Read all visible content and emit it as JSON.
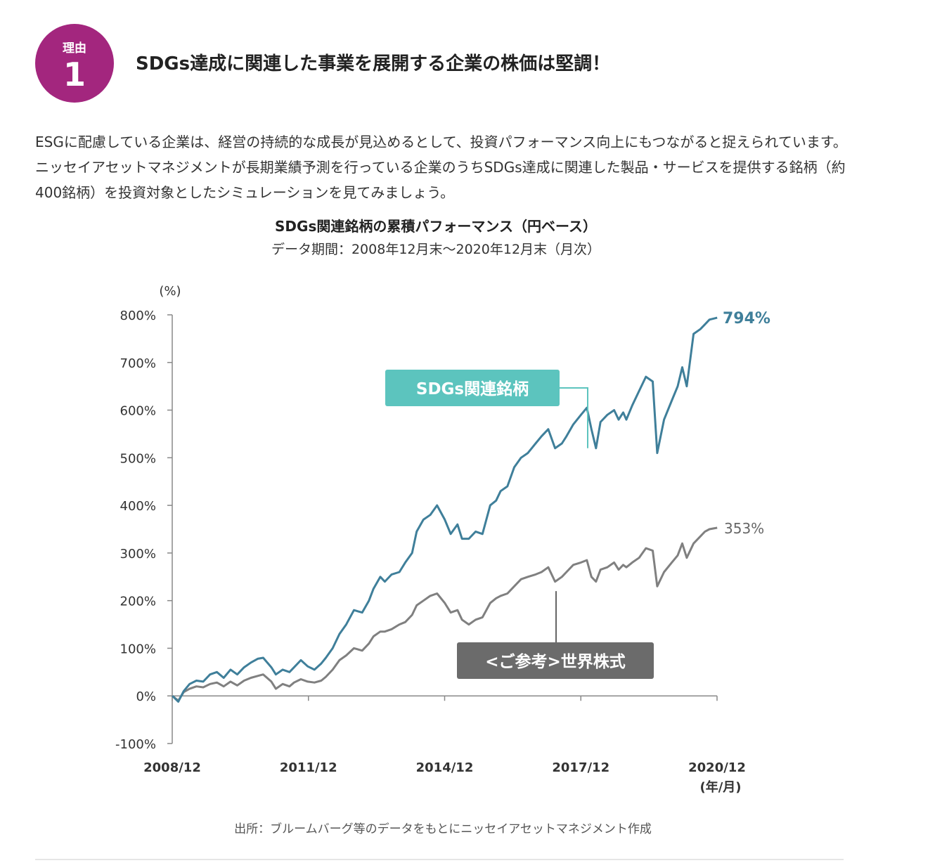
{
  "badge": {
    "label": "理由",
    "number": "1"
  },
  "heading": "SDGs達成に関連した事業を展開する企業の株価は堅調！",
  "paragraph": "ESGに配慮している企業は、経営の持続的な成長が見込めるとして、投資パフォーマンス向上にもつながると捉えられています。ニッセイアセットマネジメントが長期業績予測を行っている企業のうちSDGs達成に関連した製品・サービスを提供する銘柄（約400銘柄）を投資対象としたシミュレーションを見てみましょう。",
  "source": "出所：ブルームバーグ等のデータをもとにニッセイアセットマネジメント作成",
  "colors": {
    "badge": "#a3267e",
    "sdgs_line": "#3f7f9a",
    "world_line": "#808080",
    "sdgs_label": "#5cc4be",
    "world_label": "#6b6b6b"
  },
  "chart_data": {
    "type": "line",
    "title": "SDGs関連銘柄の累積パフォーマンス（円ベース）",
    "subtitle": "データ期間：2008年12月末～2020年12月末（月次）",
    "ylabel": "(%)",
    "xlabel": "(年/月)",
    "ylim": [
      -100,
      800
    ],
    "yticks": [
      "800%",
      "700%",
      "600%",
      "500%",
      "400%",
      "300%",
      "200%",
      "100%",
      "0%",
      "-100%"
    ],
    "xlim": [
      2008.917,
      2020.917
    ],
    "xticks": [
      "2008/12",
      "2011/12",
      "2014/12",
      "2017/12",
      "2020/12"
    ],
    "grid": false,
    "series": [
      {
        "name": "SDGs関連銘柄",
        "end_label": "794%",
        "x": [
          2008.92,
          2009.05,
          2009.17,
          2009.3,
          2009.45,
          2009.6,
          2009.75,
          2009.9,
          2010.05,
          2010.2,
          2010.35,
          2010.5,
          2010.65,
          2010.8,
          2010.92,
          2011.1,
          2011.2,
          2011.35,
          2011.5,
          2011.6,
          2011.75,
          2011.9,
          2012.05,
          2012.2,
          2012.3,
          2012.45,
          2012.6,
          2012.75,
          2012.92,
          2013.1,
          2013.25,
          2013.35,
          2013.5,
          2013.6,
          2013.75,
          2013.92,
          2014.05,
          2014.2,
          2014.3,
          2014.45,
          2014.6,
          2014.75,
          2014.92,
          2015.05,
          2015.2,
          2015.3,
          2015.45,
          2015.6,
          2015.75,
          2015.92,
          2016.05,
          2016.15,
          2016.3,
          2016.45,
          2016.6,
          2016.75,
          2016.92,
          2017.05,
          2017.2,
          2017.35,
          2017.5,
          2017.6,
          2017.75,
          2017.92,
          2018.05,
          2018.15,
          2018.25,
          2018.35,
          2018.5,
          2018.65,
          2018.75,
          2018.85,
          2018.92,
          2019.05,
          2019.2,
          2019.35,
          2019.5,
          2019.6,
          2019.75,
          2019.92,
          2020.05,
          2020.15,
          2020.25,
          2020.4,
          2020.55,
          2020.65,
          2020.75,
          2020.92
        ],
        "y": [
          0,
          -12,
          10,
          25,
          32,
          30,
          45,
          50,
          38,
          55,
          45,
          60,
          70,
          78,
          80,
          60,
          45,
          55,
          50,
          60,
          75,
          62,
          55,
          68,
          80,
          100,
          130,
          150,
          180,
          175,
          200,
          225,
          250,
          240,
          255,
          260,
          280,
          300,
          345,
          370,
          380,
          400,
          370,
          340,
          360,
          330,
          330,
          345,
          340,
          400,
          410,
          430,
          440,
          480,
          500,
          510,
          530,
          545,
          560,
          520,
          530,
          545,
          570,
          590,
          605,
          560,
          520,
          575,
          590,
          600,
          580,
          595,
          580,
          610,
          640,
          670,
          660,
          510,
          580,
          620,
          650,
          690,
          650,
          760,
          770,
          780,
          790,
          794
        ]
      },
      {
        "name": "<ご参考>世界株式",
        "end_label": "353%",
        "x": [
          2008.92,
          2009.05,
          2009.17,
          2009.3,
          2009.45,
          2009.6,
          2009.75,
          2009.9,
          2010.05,
          2010.2,
          2010.35,
          2010.5,
          2010.65,
          2010.8,
          2010.92,
          2011.1,
          2011.2,
          2011.35,
          2011.5,
          2011.6,
          2011.75,
          2011.9,
          2012.05,
          2012.2,
          2012.3,
          2012.45,
          2012.6,
          2012.75,
          2012.92,
          2013.1,
          2013.25,
          2013.35,
          2013.5,
          2013.6,
          2013.75,
          2013.92,
          2014.05,
          2014.2,
          2014.3,
          2014.45,
          2014.6,
          2014.75,
          2014.92,
          2015.05,
          2015.2,
          2015.3,
          2015.45,
          2015.6,
          2015.75,
          2015.92,
          2016.05,
          2016.15,
          2016.3,
          2016.45,
          2016.6,
          2016.75,
          2016.92,
          2017.05,
          2017.2,
          2017.35,
          2017.5,
          2017.6,
          2017.75,
          2017.92,
          2018.05,
          2018.15,
          2018.25,
          2018.35,
          2018.5,
          2018.65,
          2018.75,
          2018.85,
          2018.92,
          2019.05,
          2019.2,
          2019.35,
          2019.5,
          2019.6,
          2019.75,
          2019.92,
          2020.05,
          2020.15,
          2020.25,
          2020.4,
          2020.55,
          2020.65,
          2020.75,
          2020.92
        ],
        "y": [
          0,
          -10,
          8,
          15,
          20,
          18,
          25,
          28,
          20,
          30,
          22,
          32,
          38,
          42,
          45,
          30,
          15,
          25,
          20,
          28,
          35,
          30,
          28,
          32,
          40,
          55,
          75,
          85,
          100,
          95,
          110,
          125,
          135,
          135,
          140,
          150,
          155,
          170,
          190,
          200,
          210,
          215,
          195,
          175,
          180,
          160,
          150,
          160,
          165,
          195,
          205,
          210,
          215,
          230,
          245,
          250,
          255,
          260,
          270,
          240,
          250,
          260,
          275,
          280,
          285,
          250,
          240,
          265,
          270,
          280,
          265,
          275,
          270,
          280,
          290,
          310,
          305,
          230,
          260,
          280,
          295,
          320,
          290,
          320,
          335,
          345,
          350,
          353
        ]
      }
    ]
  }
}
